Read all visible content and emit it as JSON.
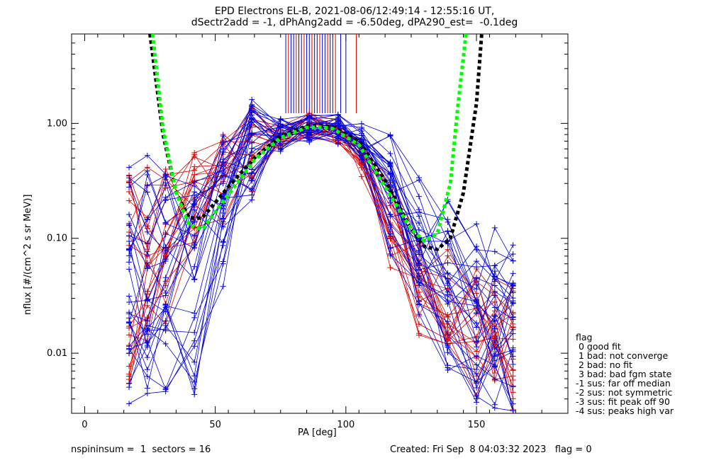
{
  "title_line1": "EPD Electrons EL-B, 2021-08-06/12:49:14 - 12:55:16 UT,",
  "title_line2": "dSectr2add = -1, dPhAng2add = -6.50deg, dPA290_est=  -0.1deg",
  "footer_left": "nspininsum =  1  sectors = 16",
  "footer_right": "Created: Fri Sep  8 04:03:32 2023   flag = 0",
  "legend": {
    "title": "flag",
    "items": [
      " 0 good fit",
      " 1 bad: not converge",
      " 2 bad: no fit",
      " 3 bad: bad fgm state",
      "-1 sus: far off median",
      "-2 sus: not symmetric",
      "-3 sus: fit peak off 90",
      "-4 sus: peaks high var"
    ]
  },
  "colors": {
    "series_red": "#dd0000",
    "series_blue": "#0000dd",
    "fit_black": "#000000",
    "fit_green": "#00ff00"
  },
  "chart_data": {
    "type": "line",
    "title": "EPD Electrons EL-B, 2021-08-06/12:49:14 - 12:55:16 UT,",
    "subtitle": "dSectr2add = -1, dPhAng2add = -6.50deg, dPA290_est=  -0.1deg",
    "xlabel": "PA [deg]",
    "ylabel": "nflux [#/(cm^2 s sr MeV)]",
    "xlim": [
      -5,
      185
    ],
    "ylim": [
      0.003,
      6
    ],
    "y_scale": "log",
    "x_ticks": [
      0,
      50,
      100,
      150
    ],
    "x_tick_labels": [
      "0",
      "50",
      "100",
      "150"
    ],
    "y_ticks": [
      0.01,
      0.1,
      1.0
    ],
    "y_tick_labels": [
      "0.01",
      "0.10",
      "1.00"
    ],
    "pa_bins": [
      17,
      24,
      31,
      42,
      53,
      64,
      75,
      86,
      97,
      106,
      117,
      128,
      139,
      150,
      157,
      164
    ],
    "series_templates": [
      {
        "color": "red",
        "values": [
          0.012,
          0.03,
          0.05,
          0.15,
          0.3,
          0.55,
          0.8,
          0.92,
          0.85,
          0.55,
          0.15,
          0.04,
          0.02,
          0.012,
          0.01,
          0.009
        ]
      },
      {
        "color": "red",
        "values": [
          0.2,
          0.15,
          0.18,
          0.2,
          0.38,
          0.6,
          0.85,
          0.95,
          0.8,
          0.45,
          0.12,
          0.05,
          0.03,
          0.02,
          0.018,
          0.015
        ]
      },
      {
        "color": "blue",
        "values": [
          0.05,
          0.03,
          0.04,
          0.1,
          0.25,
          0.6,
          0.85,
          0.9,
          0.9,
          0.7,
          0.3,
          0.1,
          0.05,
          0.03,
          0.02,
          0.02
        ]
      },
      {
        "color": "blue",
        "values": [
          0.15,
          0.2,
          0.15,
          0.12,
          0.3,
          0.7,
          0.85,
          0.92,
          0.95,
          0.75,
          0.35,
          0.12,
          0.08,
          0.06,
          0.05,
          0.04
        ]
      },
      {
        "color": "blue",
        "values": [
          0.01,
          0.011,
          0.011,
          0.011,
          0.1,
          0.5,
          0.75,
          0.9,
          0.85,
          0.6,
          0.2,
          0.06,
          0.02,
          0.01,
          0.008,
          0.006
        ]
      }
    ],
    "fit_curves": [
      {
        "name": "",
        "color": "black",
        "style": "dotted",
        "x": [
          25,
          30,
          35,
          40,
          45,
          55,
          65,
          75,
          85,
          90,
          95,
          105,
          115,
          125,
          130,
          135,
          140,
          145,
          150,
          152
        ],
        "values": [
          6,
          0.8,
          0.25,
          0.15,
          0.15,
          0.28,
          0.5,
          0.78,
          0.95,
          0.96,
          0.93,
          0.7,
          0.32,
          0.12,
          0.085,
          0.08,
          0.1,
          0.25,
          1.5,
          6
        ]
      },
      {
        "name": "",
        "color": "green",
        "style": "dotted",
        "x": [
          26,
          30,
          35,
          40,
          45,
          55,
          65,
          75,
          85,
          90,
          95,
          105,
          115,
          125,
          130,
          135,
          140,
          143,
          146
        ],
        "values": [
          6,
          0.9,
          0.25,
          0.13,
          0.12,
          0.24,
          0.48,
          0.75,
          0.92,
          0.93,
          0.9,
          0.65,
          0.28,
          0.12,
          0.095,
          0.11,
          0.3,
          1.5,
          6
        ]
      }
    ],
    "vertical_marks_pa": [
      77,
      78,
      79,
      80,
      81,
      82,
      83,
      84,
      85,
      86,
      87,
      88,
      89,
      90,
      91,
      92,
      93,
      94,
      95,
      96,
      98,
      100,
      104
    ],
    "grid": false,
    "legend_placement": "right-bottom"
  }
}
